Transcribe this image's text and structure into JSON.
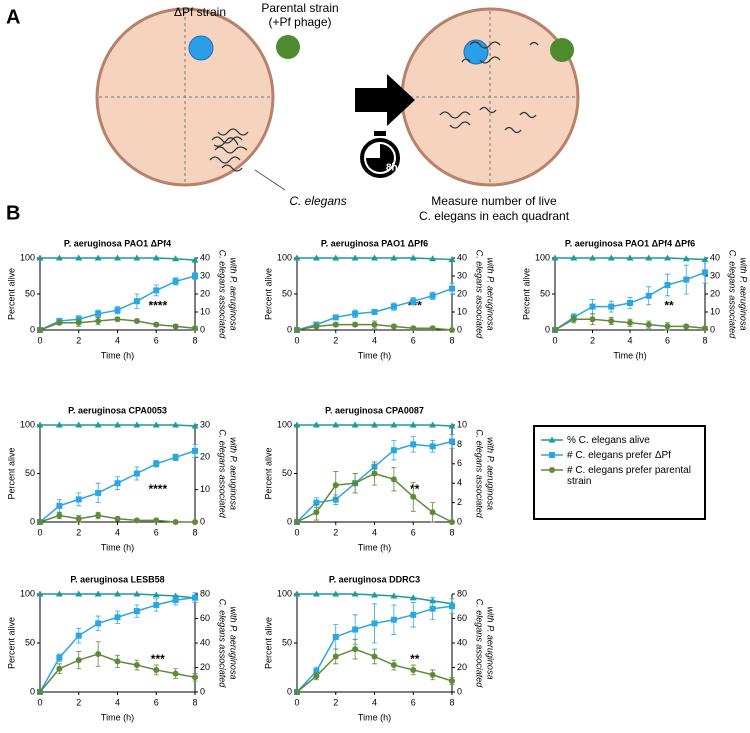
{
  "panel_a": {
    "label": "A",
    "strain_pf": "ΔPf strain",
    "parental": [
      "Parental strain",
      "(+Pf phage)"
    ],
    "worm": "C. elegans",
    "timer": "8h",
    "measure": [
      "Measure number of live",
      "C. elegans in each quadrant"
    ]
  },
  "panel_b": {
    "label": "B"
  },
  "chart_data": [
    {
      "type": "line",
      "title": "P. aeruginosa PAO1 ΔPf4",
      "xlabel": "Time (h)",
      "ylabel": "Percent alive",
      "y2label": [
        "C. elegans associated",
        "with P. aeruginosa"
      ],
      "annotation": "****",
      "x": [
        0,
        1,
        2,
        3,
        4,
        5,
        6,
        7,
        8
      ],
      "xlim": [
        0,
        8
      ],
      "xticks": [
        0,
        2,
        4,
        6,
        8
      ],
      "ylim": [
        0,
        100
      ],
      "yticks": [
        0,
        50,
        100
      ],
      "y2lim": [
        0,
        40
      ],
      "y2ticks": [
        0,
        10,
        20,
        30,
        40
      ],
      "series": [
        {
          "name": "% C. elegans alive",
          "color": "#1f9a9a",
          "marker": "triangle",
          "values": [
            100,
            100,
            100,
            100,
            100,
            100,
            100,
            99,
            97
          ]
        },
        {
          "name": "# C. elegans prefer ΔPf",
          "color": "#2ba6e0",
          "marker": "square",
          "axis": "y2",
          "values": [
            0,
            5,
            6,
            9,
            11,
            16,
            22,
            27,
            30
          ],
          "errors": [
            0,
            1,
            2,
            2,
            2,
            4,
            3,
            2,
            2
          ]
        },
        {
          "name": "# C. elegans prefer parental strain",
          "color": "#5e8a3a",
          "marker": "circle",
          "axis": "y2",
          "values": [
            0,
            4,
            4,
            5,
            6,
            5,
            3,
            2,
            1
          ],
          "errors": [
            0,
            1,
            2,
            2,
            1,
            1,
            1,
            1,
            1
          ]
        }
      ]
    },
    {
      "type": "line",
      "title": "P. aeruginosa PAO1 ΔPf6",
      "xlabel": "Time (h)",
      "ylabel": "Percent alive",
      "y2label": [
        "C. elegans associated",
        "with P. aeruginosa"
      ],
      "annotation": "***",
      "x": [
        0,
        1,
        2,
        3,
        4,
        5,
        6,
        7,
        8
      ],
      "xlim": [
        0,
        8
      ],
      "xticks": [
        0,
        2,
        4,
        6,
        8
      ],
      "ylim": [
        0,
        100
      ],
      "yticks": [
        0,
        50,
        100
      ],
      "y2lim": [
        0,
        40
      ],
      "y2ticks": [
        0,
        10,
        20,
        30,
        40
      ],
      "series": [
        {
          "name": "% C. elegans alive",
          "color": "#1f9a9a",
          "marker": "triangle",
          "values": [
            100,
            100,
            100,
            100,
            100,
            100,
            100,
            99,
            98
          ]
        },
        {
          "name": "# C. elegans prefer ΔPf",
          "color": "#2ba6e0",
          "marker": "square",
          "axis": "y2",
          "values": [
            0,
            3,
            7,
            9,
            10,
            13,
            16,
            19,
            23
          ],
          "errors": [
            0,
            1,
            1,
            2,
            1,
            2,
            2,
            2,
            3
          ]
        },
        {
          "name": "# C. elegans prefer parental strain",
          "color": "#5e8a3a",
          "marker": "circle",
          "axis": "y2",
          "values": [
            0,
            2,
            3,
            3,
            3,
            2,
            1,
            1,
            0
          ],
          "errors": [
            0,
            1,
            1,
            1,
            2,
            1,
            1,
            1,
            0
          ]
        }
      ]
    },
    {
      "type": "line",
      "title": "P. aeruginosa PAO1 ΔPf4 ΔPf6",
      "xlabel": "Time (h)",
      "ylabel": "Percent alive",
      "y2label": [
        "C. elegans associated",
        "with P. aeruginosa"
      ],
      "annotation": "**",
      "x": [
        0,
        1,
        2,
        3,
        4,
        5,
        6,
        7,
        8
      ],
      "xlim": [
        0,
        8
      ],
      "xticks": [
        0,
        2,
        4,
        6,
        8
      ],
      "ylim": [
        0,
        100
      ],
      "yticks": [
        0,
        50,
        100
      ],
      "y2lim": [
        0,
        40
      ],
      "y2ticks": [
        0,
        10,
        20,
        30,
        40
      ],
      "series": [
        {
          "name": "% C. elegans alive",
          "color": "#1f9a9a",
          "marker": "triangle",
          "values": [
            100,
            100,
            100,
            100,
            100,
            100,
            100,
            99,
            98
          ]
        },
        {
          "name": "# C. elegans prefer ΔPf",
          "color": "#2ba6e0",
          "marker": "square",
          "axis": "y2",
          "values": [
            0,
            7,
            13,
            13,
            15,
            19,
            25,
            28,
            32
          ],
          "errors": [
            0,
            2,
            4,
            3,
            3,
            5,
            6,
            8,
            6
          ]
        },
        {
          "name": "# C. elegans prefer parental strain",
          "color": "#5e8a3a",
          "marker": "circle",
          "axis": "y2",
          "values": [
            0,
            6,
            6,
            5,
            4,
            3,
            2,
            2,
            1
          ],
          "errors": [
            0,
            2,
            3,
            2,
            2,
            2,
            2,
            1,
            1
          ]
        }
      ]
    },
    {
      "type": "line",
      "title": "P. aeruginosa CPA0053",
      "xlabel": "Time (h)",
      "ylabel": "Percent alive",
      "y2label": [
        "C. elegans associated",
        "with P. aeruginosa"
      ],
      "annotation": "****",
      "x": [
        0,
        1,
        2,
        3,
        4,
        5,
        6,
        7,
        8
      ],
      "xlim": [
        0,
        8
      ],
      "xticks": [
        0,
        2,
        4,
        6,
        8
      ],
      "ylim": [
        0,
        100
      ],
      "yticks": [
        0,
        50,
        100
      ],
      "y2lim": [
        0,
        30
      ],
      "y2ticks": [
        0,
        10,
        20,
        30
      ],
      "series": [
        {
          "name": "% C. elegans alive",
          "color": "#1f9a9a",
          "marker": "triangle",
          "values": [
            100,
            100,
            100,
            100,
            100,
            100,
            100,
            100,
            99
          ]
        },
        {
          "name": "# C. elegans prefer ΔPf",
          "color": "#2ba6e0",
          "marker": "square",
          "axis": "y2",
          "values": [
            0,
            5,
            7,
            9,
            12,
            15,
            18,
            20,
            22
          ],
          "errors": [
            0,
            2,
            2,
            3,
            2,
            2,
            1,
            1,
            2
          ]
        },
        {
          "name": "# C. elegans prefer parental strain",
          "color": "#5e8a3a",
          "marker": "circle",
          "axis": "y2",
          "values": [
            0,
            2,
            1,
            2,
            1,
            0.5,
            0.5,
            0,
            0
          ],
          "errors": [
            0,
            1,
            1,
            1,
            0.5,
            0.5,
            0.5,
            0,
            0
          ]
        }
      ]
    },
    {
      "type": "line",
      "title": "P. aeruginosa CPA0087",
      "xlabel": "Time (h)",
      "ylabel": "Percent alive",
      "y2label": [
        "C. elegans associated",
        "with P. aeruginosa"
      ],
      "annotation": "**",
      "x": [
        0,
        1,
        2,
        3,
        4,
        5,
        6,
        7,
        8
      ],
      "xlim": [
        0,
        8
      ],
      "xticks": [
        0,
        2,
        4,
        6,
        8
      ],
      "ylim": [
        0,
        100
      ],
      "yticks": [
        0,
        50,
        100
      ],
      "y2lim": [
        0,
        10
      ],
      "y2ticks": [
        0,
        2,
        4,
        6,
        8,
        10
      ],
      "series": [
        {
          "name": "% C. elegans alive",
          "color": "#1f9a9a",
          "marker": "triangle",
          "values": [
            100,
            100,
            100,
            100,
            100,
            100,
            100,
            100,
            99
          ]
        },
        {
          "name": "# C. elegans prefer ΔPf",
          "color": "#2ba6e0",
          "marker": "square",
          "axis": "y2",
          "values": [
            0,
            2,
            2.3,
            4,
            5.7,
            7.4,
            8,
            7.8,
            8.3
          ],
          "errors": [
            0,
            0.5,
            0.5,
            1,
            0.5,
            1,
            0.8,
            0.6,
            0.7
          ]
        },
        {
          "name": "# C. elegans prefer parental strain",
          "color": "#5e8a3a",
          "marker": "circle",
          "axis": "y2",
          "values": [
            0,
            1,
            3.8,
            4,
            5,
            4.4,
            2.6,
            1,
            0
          ],
          "errors": [
            0,
            0.8,
            1.4,
            1,
            1.2,
            1.2,
            1.5,
            1,
            0
          ]
        }
      ]
    },
    {
      "type": "line",
      "title": "P. aeruginosa LESB58",
      "xlabel": "Time (h)",
      "ylabel": "Percent alive",
      "y2label": [
        "C. elegans associated",
        "with P. aeruginosa"
      ],
      "annotation": "***",
      "x": [
        0,
        1,
        2,
        3,
        4,
        5,
        6,
        7,
        8
      ],
      "xlim": [
        0,
        8
      ],
      "xticks": [
        0,
        2,
        4,
        6,
        8
      ],
      "ylim": [
        0,
        100
      ],
      "yticks": [
        0,
        50,
        100
      ],
      "y2lim": [
        0,
        80
      ],
      "y2ticks": [
        0,
        20,
        40,
        60,
        80
      ],
      "series": [
        {
          "name": "% C. elegans alive",
          "color": "#1f9a9a",
          "marker": "triangle",
          "values": [
            100,
            100,
            100,
            100,
            100,
            100,
            99,
            98,
            96
          ]
        },
        {
          "name": "# C. elegans prefer ΔPf",
          "color": "#2ba6e0",
          "marker": "square",
          "axis": "y2",
          "values": [
            0,
            28,
            46,
            56,
            61,
            66,
            71,
            75,
            77
          ],
          "errors": [
            0,
            3,
            6,
            6,
            5,
            5,
            5,
            4,
            4
          ]
        },
        {
          "name": "# C. elegans prefer parental strain",
          "color": "#5e8a3a",
          "marker": "circle",
          "axis": "y2",
          "values": [
            0,
            19,
            26,
            31,
            25,
            22,
            18,
            15,
            12
          ],
          "errors": [
            0,
            4,
            7,
            10,
            5,
            4,
            4,
            4,
            3
          ]
        }
      ]
    },
    {
      "type": "line",
      "title": "P. aeruginosa DDRC3",
      "xlabel": "Time (h)",
      "ylabel": "Percent alive",
      "y2label": [
        "C. elegans associated",
        "with P. aeruginosa"
      ],
      "annotation": "**",
      "x": [
        0,
        1,
        2,
        3,
        4,
        5,
        6,
        7,
        8
      ],
      "xlim": [
        0,
        8
      ],
      "xticks": [
        0,
        2,
        4,
        6,
        8
      ],
      "ylim": [
        0,
        100
      ],
      "yticks": [
        0,
        50,
        100
      ],
      "y2lim": [
        0,
        80
      ],
      "y2ticks": [
        0,
        20,
        40,
        60,
        80
      ],
      "series": [
        {
          "name": "% C. elegans alive",
          "color": "#1f9a9a",
          "marker": "triangle",
          "values": [
            100,
            100,
            100,
            100,
            99,
            98,
            96,
            93,
            90
          ]
        },
        {
          "name": "# C. elegans prefer ΔPf",
          "color": "#2ba6e0",
          "marker": "square",
          "axis": "y2",
          "values": [
            0,
            17,
            45,
            51,
            56,
            59,
            63,
            68,
            70
          ],
          "errors": [
            0,
            3,
            10,
            12,
            16,
            12,
            10,
            9,
            6
          ]
        },
        {
          "name": "# C. elegans prefer parental strain",
          "color": "#5e8a3a",
          "marker": "circle",
          "axis": "y2",
          "values": [
            0,
            13,
            29,
            35,
            29,
            22,
            18,
            14,
            9
          ],
          "errors": [
            0,
            3,
            6,
            8,
            6,
            4,
            4,
            4,
            3
          ]
        }
      ]
    }
  ]
}
